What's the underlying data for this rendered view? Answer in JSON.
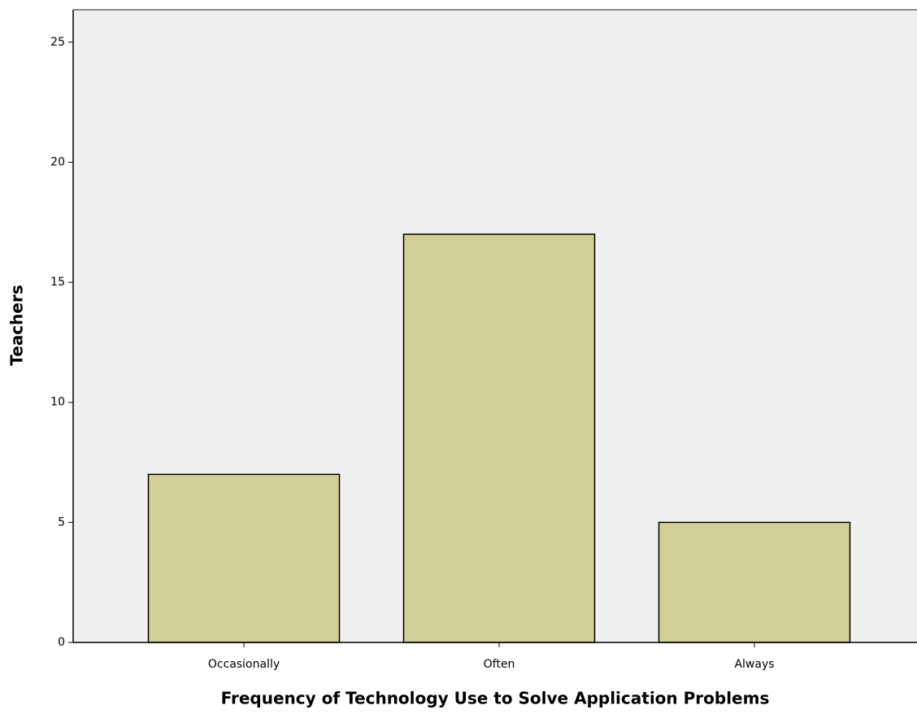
{
  "chart_data": {
    "type": "bar",
    "x_label": "Frequency of Technology Use to Solve Application Problems",
    "y_label": "Teachers",
    "categories": [
      "Occasionally",
      "Often",
      "Always"
    ],
    "values": [
      7,
      17,
      5
    ],
    "color": "#d3ce97",
    "ylim": [
      0,
      26.35
    ],
    "yticks": [
      0,
      5,
      10,
      15,
      20,
      25
    ]
  }
}
